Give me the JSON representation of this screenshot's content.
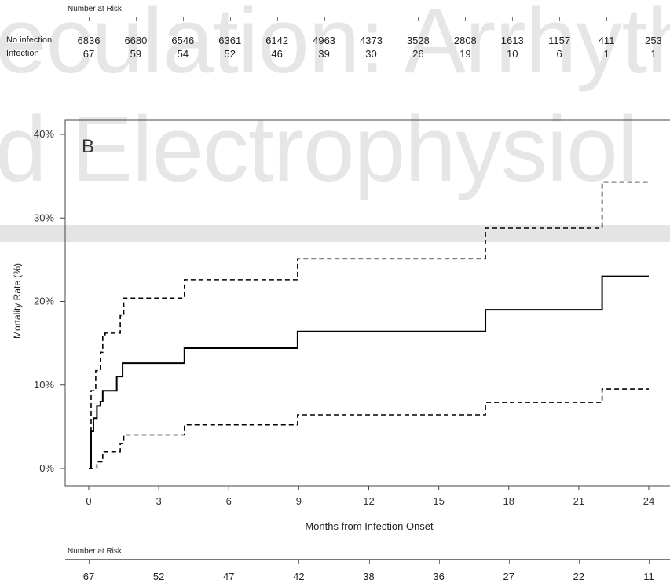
{
  "watermark": {
    "line1": "eculation: Arrhyth",
    "line2": "d Electrophysiol"
  },
  "top_risk_table": {
    "title": "Number at Risk",
    "rows": [
      {
        "label": "No infection",
        "values": [
          "6836",
          "6680",
          "6546",
          "6361",
          "6142",
          "4963",
          "4373",
          "3528",
          "2808",
          "1613",
          "1157",
          "411",
          "253"
        ]
      },
      {
        "label": "Infection",
        "values": [
          "67",
          "59",
          "54",
          "52",
          "46",
          "39",
          "30",
          "26",
          "19",
          "10",
          "6",
          "1",
          "1"
        ]
      }
    ]
  },
  "bottom_risk_table": {
    "title": "Number at Risk",
    "values": [
      "67",
      "52",
      "47",
      "42",
      "38",
      "36",
      "27",
      "22",
      "11"
    ]
  },
  "chart_data": {
    "type": "line",
    "panel_label": "B",
    "xlabel": "Months from Infection Onset",
    "ylabel": "Mortality Rate (%)",
    "xlim": [
      0,
      24
    ],
    "ylim": [
      0,
      40
    ],
    "x_ticks": [
      0,
      3,
      6,
      9,
      12,
      15,
      18,
      21,
      24
    ],
    "y_ticks": [
      0,
      10,
      20,
      30,
      40
    ],
    "y_tick_labels": [
      "0%",
      "10%",
      "20%",
      "30%",
      "40%"
    ],
    "step": true,
    "series": [
      {
        "style": "solid",
        "x": [
          0,
          0.1,
          0.2,
          0.35,
          0.5,
          0.6,
          0.8,
          1.2,
          1.45,
          4.1,
          8.95,
          17.0,
          22.0,
          24.0
        ],
        "y": [
          0,
          4.5,
          6.0,
          7.5,
          8.0,
          9.3,
          9.3,
          11.0,
          12.6,
          14.4,
          16.4,
          19.0,
          23.0,
          23.0
        ]
      },
      {
        "style": "dashed",
        "x": [
          0,
          0.1,
          0.3,
          0.5,
          0.6,
          0.7,
          1.2,
          1.35,
          1.5,
          4.1,
          8.95,
          17.0,
          22.0,
          24.0
        ],
        "y": [
          0,
          9.3,
          11.7,
          13.9,
          16.0,
          16.2,
          16.2,
          18.3,
          20.4,
          22.6,
          25.1,
          28.8,
          34.3,
          34.3
        ]
      },
      {
        "style": "dashed",
        "x": [
          0,
          0.35,
          0.6,
          1.15,
          1.35,
          1.5,
          4.1,
          8.95,
          17.0,
          22.0,
          24.0
        ],
        "y": [
          0,
          0.8,
          2.0,
          2.0,
          3.0,
          4.0,
          5.2,
          6.4,
          7.9,
          9.5,
          9.5
        ]
      }
    ],
    "grid": false,
    "colors": {
      "line": "#000000",
      "axis": "#444444"
    }
  }
}
